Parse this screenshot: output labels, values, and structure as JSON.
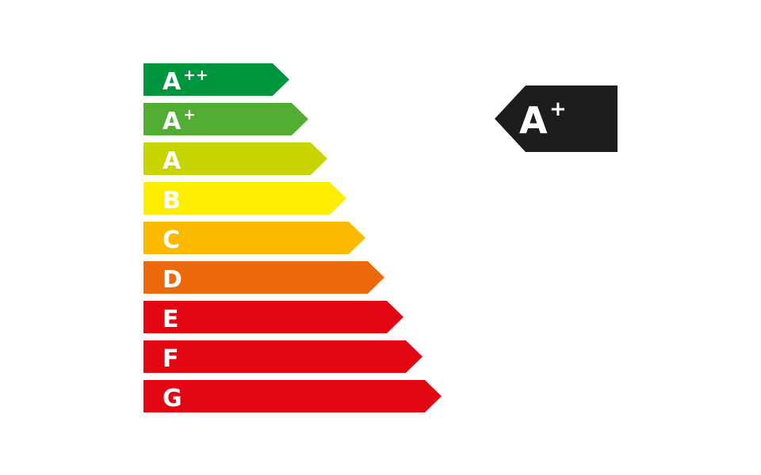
{
  "scale": {
    "classes": [
      {
        "letter": "A",
        "sup": "++",
        "color": "#009640"
      },
      {
        "letter": "A",
        "sup": "+",
        "color": "#52ae32"
      },
      {
        "letter": "A",
        "sup": "",
        "color": "#c8d400"
      },
      {
        "letter": "B",
        "sup": "",
        "color": "#ffed00"
      },
      {
        "letter": "C",
        "sup": "",
        "color": "#fbba00"
      },
      {
        "letter": "D",
        "sup": "",
        "color": "#eb690b"
      },
      {
        "letter": "E",
        "sup": "",
        "color": "#e30613"
      },
      {
        "letter": "F",
        "sup": "",
        "color": "#e30613"
      },
      {
        "letter": "G",
        "sup": "",
        "color": "#e30613"
      }
    ]
  },
  "rating": {
    "letter": "A",
    "sup": "+",
    "color": "#1d1d1b"
  }
}
